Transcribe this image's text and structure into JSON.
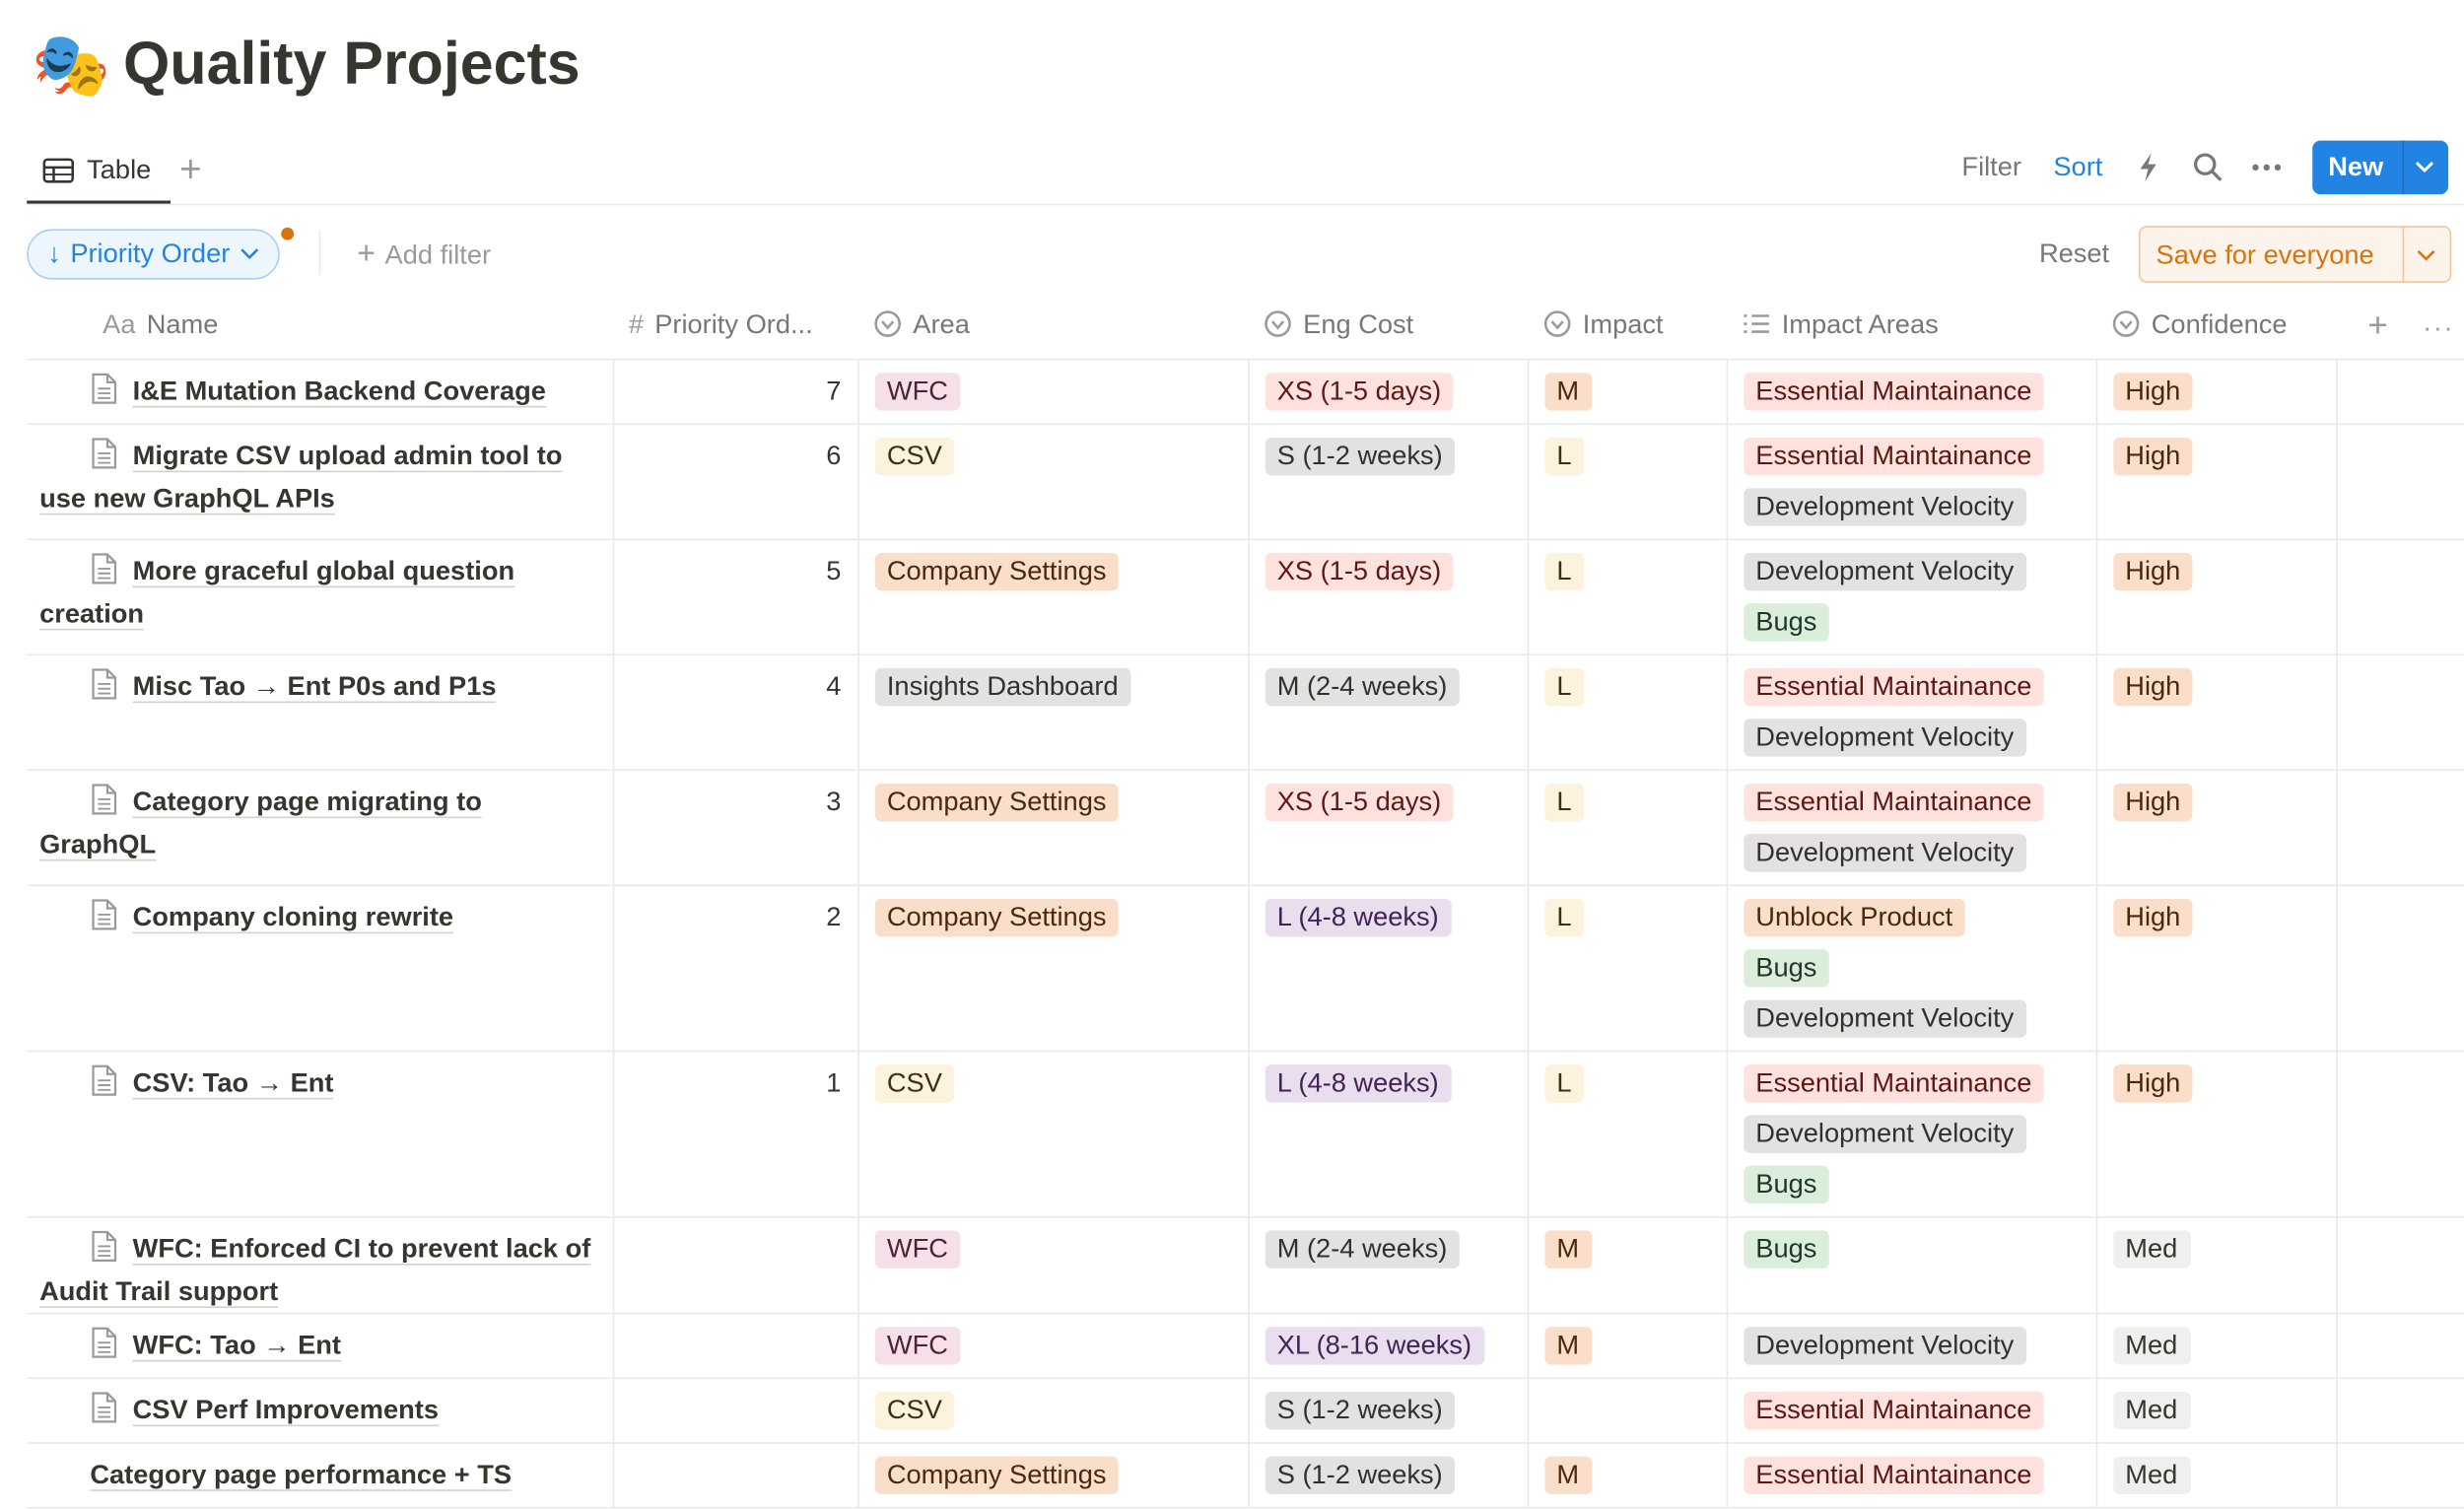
{
  "header": {
    "icon": "🎭",
    "title": "Quality Projects"
  },
  "views": {
    "tabs": [
      "Table"
    ],
    "actions": {
      "filter": "Filter",
      "sort": "Sort",
      "new": "New"
    }
  },
  "toolbar": {
    "sort_chip": "Priority Order",
    "add_filter": "Add filter",
    "reset": "Reset",
    "save": "Save for everyone"
  },
  "table": {
    "columns": [
      {
        "icon": "Aa",
        "name": "Name"
      },
      {
        "icon": "#",
        "name": "Priority Ord..."
      },
      {
        "name": "Area"
      },
      {
        "name": "Eng Cost"
      },
      {
        "name": "Impact"
      },
      {
        "name": "Impact Areas"
      },
      {
        "name": "Confidence"
      }
    ],
    "rows": [
      {
        "name": "I&E Mutation Backend Coverage",
        "doc": true,
        "priority": 7,
        "area": {
          "text": "WFC",
          "color": "pink"
        },
        "cost": {
          "text": "XS (1-5 days)",
          "color": "red"
        },
        "impact": {
          "text": "M",
          "color": "orange"
        },
        "areas": [
          {
            "text": "Essential Maintainance",
            "color": "red"
          }
        ],
        "confidence": {
          "text": "High",
          "color": "orange"
        }
      },
      {
        "name": "Migrate CSV upload admin tool to use new GraphQL APIs",
        "doc": true,
        "priority": 6,
        "area": {
          "text": "CSV",
          "color": "yellow"
        },
        "cost": {
          "text": "S (1-2 weeks)",
          "color": "gray"
        },
        "impact": {
          "text": "L",
          "color": "yellow"
        },
        "areas": [
          {
            "text": "Essential Maintainance",
            "color": "red"
          },
          {
            "text": "Development Velocity",
            "color": "gray"
          }
        ],
        "confidence": {
          "text": "High",
          "color": "orange"
        }
      },
      {
        "name": "More graceful global question creation",
        "doc": true,
        "priority": 5,
        "area": {
          "text": "Company Settings",
          "color": "orange"
        },
        "cost": {
          "text": "XS (1-5 days)",
          "color": "red"
        },
        "impact": {
          "text": "L",
          "color": "yellow"
        },
        "areas": [
          {
            "text": "Development Velocity",
            "color": "gray"
          },
          {
            "text": "Bugs",
            "color": "green"
          }
        ],
        "confidence": {
          "text": "High",
          "color": "orange"
        }
      },
      {
        "name": "Misc Tao → Ent P0s and P1s",
        "doc": true,
        "priority": 4,
        "area": {
          "text": "Insights Dashboard",
          "color": "gray"
        },
        "cost": {
          "text": "M (2-4 weeks)",
          "color": "gray"
        },
        "impact": {
          "text": "L",
          "color": "yellow"
        },
        "areas": [
          {
            "text": "Essential Maintainance",
            "color": "red"
          },
          {
            "text": "Development Velocity",
            "color": "gray"
          }
        ],
        "confidence": {
          "text": "High",
          "color": "orange"
        }
      },
      {
        "name": "Category page migrating to GraphQL",
        "doc": true,
        "priority": 3,
        "area": {
          "text": "Company Settings",
          "color": "orange"
        },
        "cost": {
          "text": "XS (1-5 days)",
          "color": "red"
        },
        "impact": {
          "text": "L",
          "color": "yellow"
        },
        "areas": [
          {
            "text": "Essential Maintainance",
            "color": "red"
          },
          {
            "text": "Development Velocity",
            "color": "gray"
          }
        ],
        "confidence": {
          "text": "High",
          "color": "orange"
        }
      },
      {
        "name": "Company cloning rewrite",
        "doc": true,
        "priority": 2,
        "area": {
          "text": "Company Settings",
          "color": "orange"
        },
        "cost": {
          "text": "L (4-8 weeks)",
          "color": "purple"
        },
        "impact": {
          "text": "L",
          "color": "yellow"
        },
        "areas": [
          {
            "text": "Unblock Product",
            "color": "orange"
          },
          {
            "text": "Bugs",
            "color": "green"
          },
          {
            "text": "Development Velocity",
            "color": "gray"
          }
        ],
        "confidence": {
          "text": "High",
          "color": "orange"
        }
      },
      {
        "name": "CSV: Tao → Ent",
        "doc": true,
        "priority": 1,
        "area": {
          "text": "CSV",
          "color": "yellow"
        },
        "cost": {
          "text": "L (4-8 weeks)",
          "color": "purple"
        },
        "impact": {
          "text": "L",
          "color": "yellow"
        },
        "areas": [
          {
            "text": "Essential Maintainance",
            "color": "red"
          },
          {
            "text": "Development Velocity",
            "color": "gray"
          },
          {
            "text": "Bugs",
            "color": "green"
          }
        ],
        "confidence": {
          "text": "High",
          "color": "orange"
        }
      },
      {
        "name": "WFC: Enforced CI to prevent lack of Audit Trail support",
        "doc": true,
        "priority": null,
        "area": {
          "text": "WFC",
          "color": "pink"
        },
        "cost": {
          "text": "M (2-4 weeks)",
          "color": "gray"
        },
        "impact": {
          "text": "M",
          "color": "orange"
        },
        "areas": [
          {
            "text": "Bugs",
            "color": "green"
          }
        ],
        "confidence": {
          "text": "Med",
          "color": "default"
        }
      },
      {
        "name": "WFC: Tao → Ent",
        "doc": true,
        "priority": null,
        "area": {
          "text": "WFC",
          "color": "pink"
        },
        "cost": {
          "text": "XL (8-16 weeks)",
          "color": "purple"
        },
        "impact": {
          "text": "M",
          "color": "orange"
        },
        "areas": [
          {
            "text": "Development Velocity",
            "color": "gray"
          }
        ],
        "confidence": {
          "text": "Med",
          "color": "default"
        }
      },
      {
        "name": "CSV Perf Improvements",
        "doc": true,
        "priority": null,
        "area": {
          "text": "CSV",
          "color": "yellow"
        },
        "cost": {
          "text": "S (1-2 weeks)",
          "color": "gray"
        },
        "impact": null,
        "areas": [
          {
            "text": "Essential Maintainance",
            "color": "red"
          }
        ],
        "confidence": {
          "text": "Med",
          "color": "default"
        }
      },
      {
        "name": "Category page performance + TS",
        "doc": false,
        "priority": null,
        "area": {
          "text": "Company Settings",
          "color": "orange"
        },
        "cost": {
          "text": "S (1-2 weeks)",
          "color": "gray"
        },
        "impact": {
          "text": "M",
          "color": "orange"
        },
        "areas": [
          {
            "text": "Essential Maintainance",
            "color": "red"
          }
        ],
        "confidence": {
          "text": "Med",
          "color": "default"
        }
      }
    ]
  }
}
